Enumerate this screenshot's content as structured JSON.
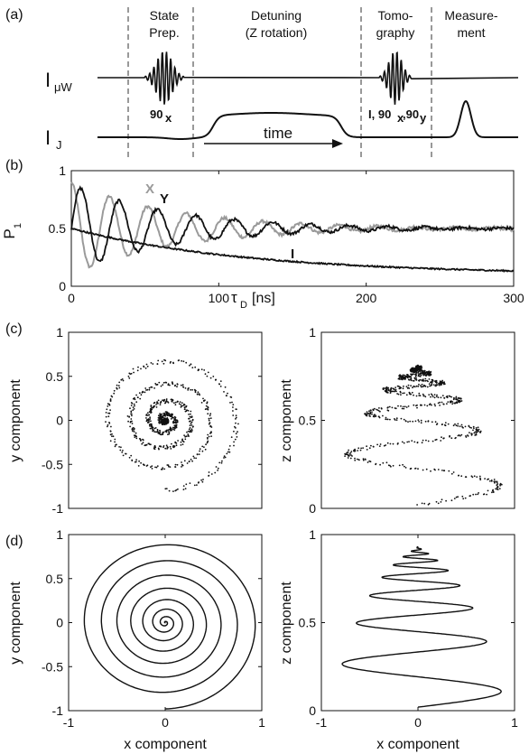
{
  "panels": {
    "a": "(a)",
    "b": "(b)",
    "c": "(c)",
    "d": "(d)"
  },
  "timing": {
    "headers": [
      {
        "line1": "State",
        "line2": "Prep."
      },
      {
        "line1": "Detuning",
        "line2": "(Z rotation)"
      },
      {
        "line1": "Tomo-",
        "line2": "graphy"
      },
      {
        "line1": "Measure-",
        "line2": "ment"
      }
    ],
    "signal_mw": {
      "main": "I",
      "sub": "μW"
    },
    "signal_j": {
      "main": "I",
      "sub": "J"
    },
    "pulse_prep": {
      "main": "90",
      "sub": "x"
    },
    "pulse_tomo": {
      "p1": "I, 90",
      "s1": "x",
      "p2": ",90",
      "s2": "y"
    },
    "time_label": "time"
  },
  "chart_data": [
    {
      "type": "line",
      "panel": "b",
      "ylabel": "P",
      "ylabel_sub": "1",
      "xlabel": "τ",
      "xlabel_sub": "D",
      "xlabel_unit": "[ns]",
      "xlim": [
        0,
        300
      ],
      "ylim": [
        0,
        1
      ],
      "xticks": [
        "0",
        "100",
        "200",
        "300"
      ],
      "yticks": [
        "0",
        "0.5",
        "1"
      ],
      "series": [
        {
          "name": "X",
          "color": "#9a9a9a",
          "model": "damped_cos",
          "params": {
            "offset": 0.5,
            "amp": 0.4,
            "tau_ns": 70,
            "period_ns": 26,
            "phase": 0
          }
        },
        {
          "name": "Y",
          "color": "#111111",
          "model": "damped_sin",
          "params": {
            "offset": 0.5,
            "amp": 0.38,
            "tau_ns": 70,
            "period_ns": 26,
            "phase": 0
          }
        },
        {
          "name": "I",
          "color": "#111111",
          "model": "exp_decay",
          "params": {
            "start": 0.5,
            "end": 0.1,
            "tau_ns": 120
          }
        }
      ]
    },
    {
      "type": "scatter",
      "panel": "c-left",
      "xlim": [
        -1,
        1
      ],
      "ylim": [
        -1,
        1
      ],
      "ylabel": "y component",
      "xticks": [],
      "yticks": [
        "-1",
        "-0.5",
        "0",
        "0.5",
        "1"
      ],
      "shape": "spiral_xy",
      "params": {
        "turns": 4.5,
        "r0": 0.8
      }
    },
    {
      "type": "scatter",
      "panel": "c-right",
      "xlim": [
        -1,
        1
      ],
      "ylim": [
        0,
        1
      ],
      "ylabel": "z component",
      "xticks": [],
      "yticks": [
        "0",
        "0.5",
        "1"
      ],
      "shape": "cone_xz",
      "params": {
        "turns": 5.5,
        "z_top": 0.8
      }
    },
    {
      "type": "line",
      "panel": "d-left",
      "xlim": [
        -1,
        1
      ],
      "ylim": [
        -1,
        1
      ],
      "xlabel": "x component",
      "ylabel": "y component",
      "xticks": [
        "-1",
        "0",
        "1"
      ],
      "yticks": [
        "-1",
        "-0.5",
        "0",
        "0.5",
        "1"
      ],
      "shape": "spiral_xy",
      "params": {
        "turns": 8,
        "r0": 0.98
      }
    },
    {
      "type": "line",
      "panel": "d-right",
      "xlim": [
        -1,
        1
      ],
      "ylim": [
        0,
        1
      ],
      "xlabel": "x component",
      "ylabel": "z component",
      "xticks": [
        "-1",
        "0",
        "1"
      ],
      "yticks": [
        "0",
        "0.5",
        "1"
      ],
      "shape": "cone_xz",
      "params": {
        "turns": 8,
        "z_top": 0.93
      }
    }
  ]
}
